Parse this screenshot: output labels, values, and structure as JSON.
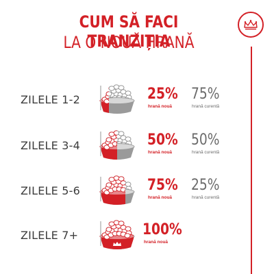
{
  "title": {
    "line1": "CUM SĂ FACI TRANZIȚIA",
    "line2": "LA O NOUĂ HRANĂ"
  },
  "colors": {
    "red": "#d32026",
    "gray": "#6b6b6b",
    "text": "#3c3c3c"
  },
  "brand_icon": "royal-canin-crown-icon",
  "steps": [
    {
      "label": "ZILELE 1-2",
      "new_pct": "25%",
      "new_label": "hrană nouă",
      "current_pct": "75%",
      "current_label": "hrană curentă",
      "new_fraction": 0.25
    },
    {
      "label": "ZILELE 3-4",
      "new_pct": "50%",
      "new_label": "hrană nouă",
      "current_pct": "50%",
      "current_label": "hrană curentă",
      "new_fraction": 0.5
    },
    {
      "label": "ZILELE 5-6",
      "new_pct": "75%",
      "new_label": "hrană nouă",
      "current_pct": "25%",
      "current_label": "hrană curentă",
      "new_fraction": 0.75
    },
    {
      "label": "ZILELE 7+",
      "new_pct": "100%",
      "new_label": "hrană nouă",
      "new_fraction": 1.0
    }
  ]
}
